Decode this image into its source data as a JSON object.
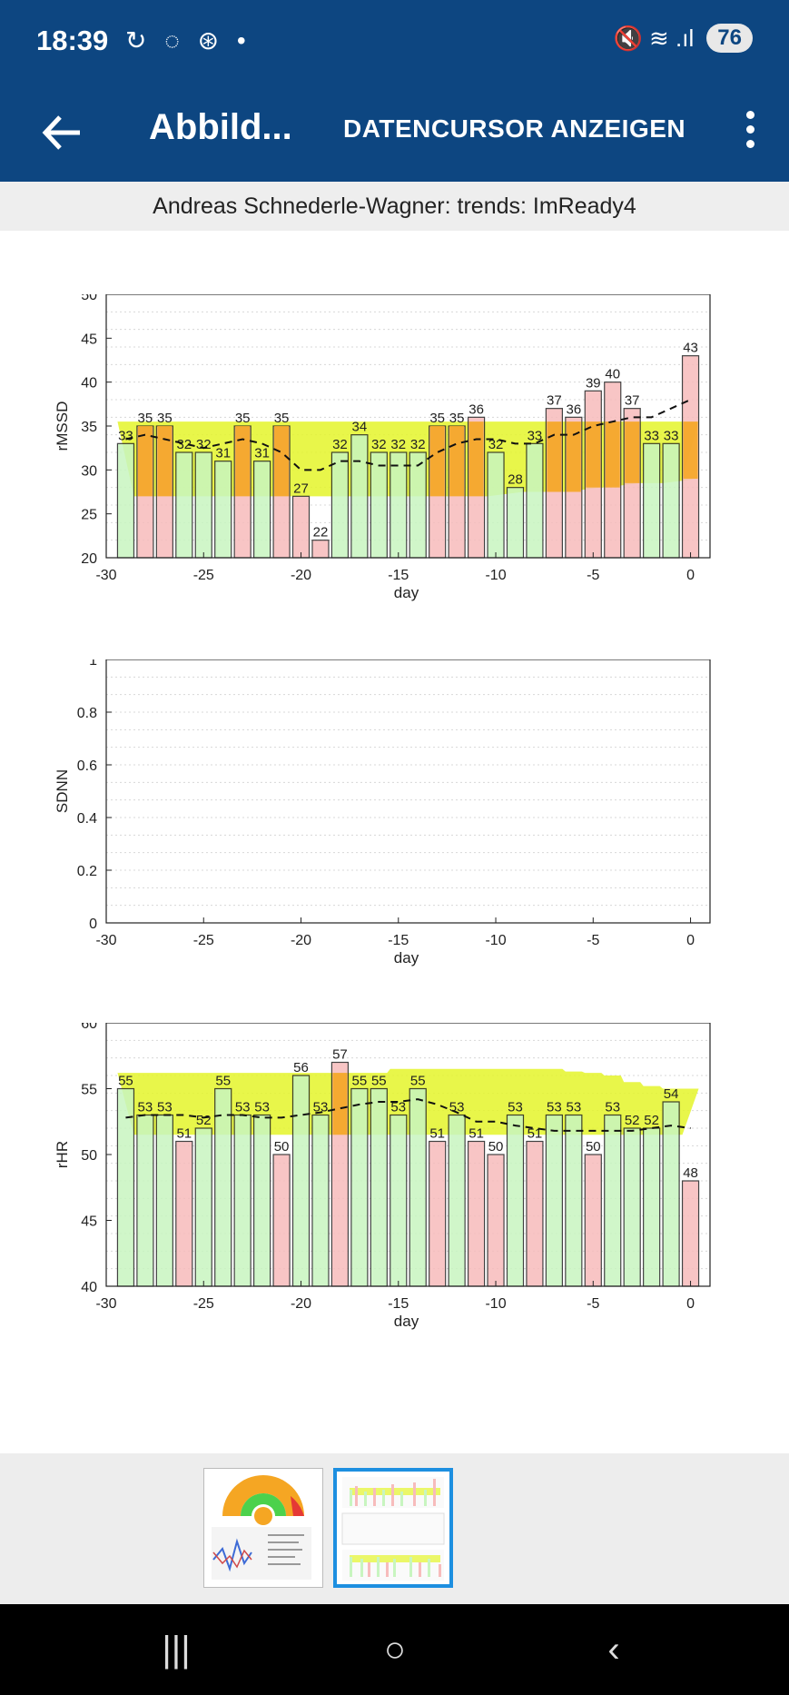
{
  "status": {
    "time": "18:39",
    "left_icons": "↻ ◌ ⊛ •",
    "right_icons": "🔇 ≋ .ıl",
    "battery": "76"
  },
  "appbar": {
    "title": "Abbild...",
    "action": "DATENCURSOR ANZEIGEN"
  },
  "subtitle": "Andreas Schnederle-Wagner: trends: ImReady4",
  "colors": {
    "header": "#0d4681",
    "bar_green": "#c8f5c0",
    "bar_red": "#f7bcbc",
    "band_yellow": "#e4f52a",
    "band_orange": "#f5a623",
    "selected_thumb": "#1d8fe0"
  },
  "chart_data": [
    {
      "type": "bar",
      "ylabel": "rMSSD",
      "xlabel": "day",
      "ylim": [
        20,
        50
      ],
      "yticks": [
        "20",
        "25",
        "30",
        "35",
        "40",
        "45",
        "50"
      ],
      "xticks": [
        "-30",
        "-25",
        "-20",
        "-15",
        "-10",
        "-5",
        "0"
      ],
      "x": [
        -29,
        -28,
        -27,
        -26,
        -25,
        -24,
        -23,
        -22,
        -21,
        -20,
        -19,
        -18,
        -17,
        -16,
        -15,
        -14,
        -13,
        -12,
        -11,
        -10,
        -9,
        -8,
        -7,
        -6,
        -5,
        -4,
        -3,
        -2,
        -1,
        0
      ],
      "values": [
        33,
        35,
        35,
        32,
        32,
        31,
        35,
        31,
        35,
        27,
        22,
        32,
        34,
        32,
        32,
        32,
        35,
        35,
        36,
        32,
        28,
        33,
        37,
        36,
        39,
        40,
        37,
        33,
        33,
        43
      ],
      "labels": [
        "33",
        "35",
        "35",
        "32",
        "32",
        "31",
        "35",
        "31",
        "35",
        "27",
        "22",
        "32",
        "34",
        "32",
        "32",
        "32",
        "35",
        "35",
        "36",
        "32",
        "28",
        "33",
        "37",
        "36",
        "39",
        "40",
        "37",
        "33",
        "33",
        "43"
      ],
      "bar_colors": [
        "g",
        "r",
        "r",
        "g",
        "g",
        "g",
        "r",
        "g",
        "r",
        "r",
        "r",
        "g",
        "g",
        "g",
        "g",
        "g",
        "r",
        "r",
        "r",
        "g",
        "g",
        "g",
        "r",
        "r",
        "r",
        "r",
        "r",
        "g",
        "g",
        "r"
      ],
      "band_low": [
        27,
        27,
        27,
        27,
        27,
        27,
        27,
        27,
        27,
        27,
        27,
        27,
        27,
        27,
        27,
        27,
        27,
        27,
        27,
        27,
        27.5,
        27.5,
        27.5,
        27.5,
        28,
        28,
        28.5,
        28.5,
        28.5,
        29
      ],
      "band_high": [
        35.5,
        35.5,
        35.5,
        35.5,
        35.5,
        35.5,
        35.5,
        35.5,
        35.5,
        35.5,
        35.5,
        35.5,
        35.5,
        35.5,
        35.5,
        35.5,
        35.5,
        35.5,
        35.5,
        35.5,
        35.5,
        35.5,
        35.5,
        35.5,
        35.5,
        35.5,
        35.5,
        35.5,
        35.5,
        35.5
      ],
      "trend": [
        33.5,
        34,
        33.5,
        33,
        32.5,
        33,
        33.5,
        33,
        32,
        30,
        30,
        31,
        31,
        30.5,
        30.5,
        30.5,
        32,
        33,
        33.5,
        33.5,
        33,
        33,
        34,
        34,
        35,
        35.5,
        36,
        36,
        37,
        38
      ]
    },
    {
      "type": "bar",
      "ylabel": "SDNN",
      "xlabel": "day",
      "ylim": [
        0,
        1
      ],
      "yticks": [
        "0",
        "0.2",
        "0.4",
        "0.6",
        "0.8",
        "1"
      ],
      "xticks": [
        "-30",
        "-25",
        "-20",
        "-15",
        "-10",
        "-5",
        "0"
      ],
      "values": []
    },
    {
      "type": "bar",
      "ylabel": "rHR",
      "xlabel": "day",
      "ylim": [
        40,
        60
      ],
      "yticks": [
        "40",
        "45",
        "50",
        "55",
        "60"
      ],
      "xticks": [
        "-30",
        "-25",
        "-20",
        "-15",
        "-10",
        "-5",
        "0"
      ],
      "x": [
        -29,
        -28,
        -27,
        -26,
        -25,
        -24,
        -23,
        -22,
        -21,
        -20,
        -19,
        -18,
        -17,
        -16,
        -15,
        -14,
        -13,
        -12,
        -11,
        -10,
        -9,
        -8,
        -7,
        -6,
        -5,
        -4,
        -3,
        -2,
        -1,
        0
      ],
      "values": [
        55,
        53,
        53,
        51,
        52,
        55,
        53,
        53,
        50,
        56,
        53,
        57,
        55,
        55,
        53,
        55,
        51,
        53,
        51,
        50,
        53,
        51,
        53,
        53,
        50,
        53,
        52,
        52,
        54,
        48
      ],
      "labels": [
        "55",
        "53",
        "53",
        "51",
        "52",
        "55",
        "53",
        "53",
        "50",
        "56",
        "53",
        "57",
        "55",
        "55",
        "53",
        "55",
        "51",
        "53",
        "51",
        "50",
        "53",
        "51",
        "53",
        "53",
        "50",
        "53",
        "52",
        "52",
        "54",
        "48"
      ],
      "bar_colors": [
        "g",
        "g",
        "g",
        "r",
        "g",
        "g",
        "g",
        "g",
        "r",
        "g",
        "g",
        "r",
        "g",
        "g",
        "g",
        "g",
        "r",
        "g",
        "r",
        "r",
        "g",
        "r",
        "g",
        "g",
        "r",
        "g",
        "g",
        "g",
        "g",
        "r"
      ],
      "band_low": [
        51.5,
        51.5,
        51.5,
        51.5,
        51.5,
        51.5,
        51.5,
        51.5,
        51.5,
        51.5,
        51.5,
        51.5,
        51.5,
        51.5,
        51.5,
        51.5,
        51.5,
        51.5,
        51.5,
        51.5,
        51.5,
        51.5,
        51.5,
        51.5,
        51.5,
        51.5,
        51.5,
        51.5,
        51.5,
        51.5
      ],
      "band_high": [
        56.2,
        56.2,
        56.2,
        56.2,
        56.2,
        56.2,
        56.2,
        56.2,
        56.2,
        56.2,
        56.2,
        56.2,
        56.2,
        56.2,
        56.5,
        56.5,
        56.5,
        56.5,
        56.5,
        56.5,
        56.5,
        56.5,
        56.5,
        56.3,
        56.2,
        56,
        55.5,
        55.2,
        55,
        55
      ],
      "trend": [
        52.8,
        53,
        53,
        53,
        52.8,
        53,
        53,
        52.8,
        52.8,
        53,
        53.2,
        53.5,
        53.8,
        54,
        54,
        54.2,
        53.8,
        53.2,
        52.5,
        52.5,
        52.2,
        52,
        51.8,
        51.8,
        51.8,
        51.8,
        51.8,
        52,
        52.2,
        52
      ]
    }
  ],
  "navbar": {
    "recents": "|||",
    "home": "○",
    "back": "‹"
  }
}
